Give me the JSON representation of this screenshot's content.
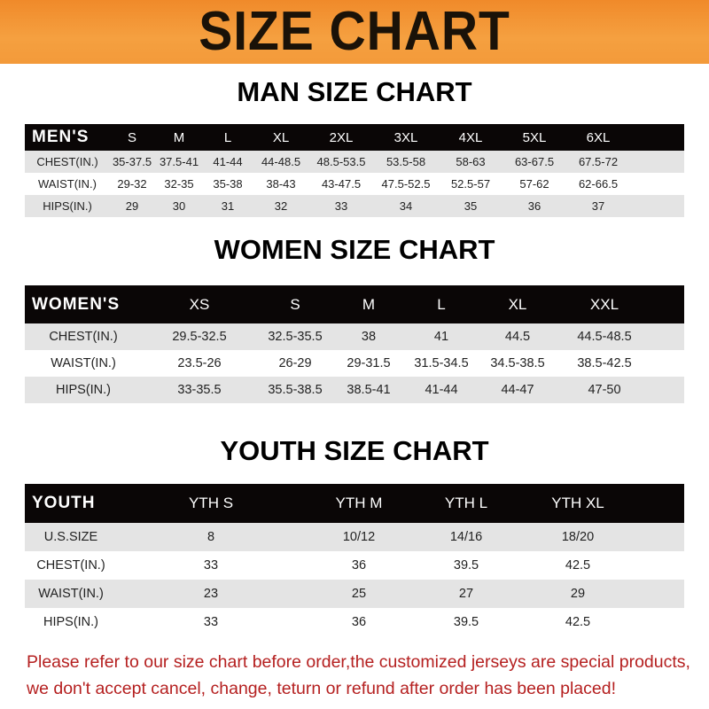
{
  "title": "SIZE CHART",
  "tables": [
    {
      "id": "men",
      "subtitle": "MAN SIZE CHART",
      "header": [
        "MEN'S",
        "S",
        "M",
        "L",
        "XL",
        "2XL",
        "3XL",
        "4XL",
        "5XL",
        "6XL"
      ],
      "rows": [
        [
          "CHEST(IN.)",
          "35-37.5",
          "37.5-41",
          "41-44",
          "44-48.5",
          "48.5-53.5",
          "53.5-58",
          "58-63",
          "63-67.5",
          "67.5-72"
        ],
        [
          "WAIST(IN.)",
          "29-32",
          "32-35",
          "35-38",
          "38-43",
          "43-47.5",
          "47.5-52.5",
          "52.5-57",
          "57-62",
          "62-66.5"
        ],
        [
          "HIPS(IN.)",
          "29",
          "30",
          "31",
          "32",
          "33",
          "34",
          "35",
          "36",
          "37"
        ]
      ]
    },
    {
      "id": "women",
      "subtitle": "WOMEN SIZE CHART",
      "header": [
        "WOMEN'S",
        "XS",
        "S",
        "M",
        "L",
        "XL",
        "XXL"
      ],
      "rows": [
        [
          "CHEST(IN.)",
          "29.5-32.5",
          "32.5-35.5",
          "38",
          "41",
          "44.5",
          "44.5-48.5"
        ],
        [
          "WAIST(IN.)",
          "23.5-26",
          "26-29",
          "29-31.5",
          "31.5-34.5",
          "34.5-38.5",
          "38.5-42.5"
        ],
        [
          "HIPS(IN.)",
          "33-35.5",
          "35.5-38.5",
          "38.5-41",
          "41-44",
          "44-47",
          "47-50"
        ]
      ]
    },
    {
      "id": "youth",
      "subtitle": "YOUTH SIZE CHART",
      "header": [
        "YOUTH",
        "YTH S",
        "YTH M",
        "YTH L",
        "YTH XL"
      ],
      "rows": [
        [
          "U.S.SIZE",
          "8",
          "10/12",
          "14/16",
          "18/20"
        ],
        [
          "CHEST(IN.)",
          "33",
          "36",
          "39.5",
          "42.5"
        ],
        [
          "WAIST(IN.)",
          "23",
          "25",
          "27",
          "29"
        ],
        [
          "HIPS(IN.)",
          "33",
          "36",
          "39.5",
          "42.5"
        ]
      ]
    }
  ],
  "footer": [
    "Please refer to our size chart before order,the customized jerseys are special products,",
    "we don't accept cancel, change, teturn or refund after order has been placed!"
  ]
}
